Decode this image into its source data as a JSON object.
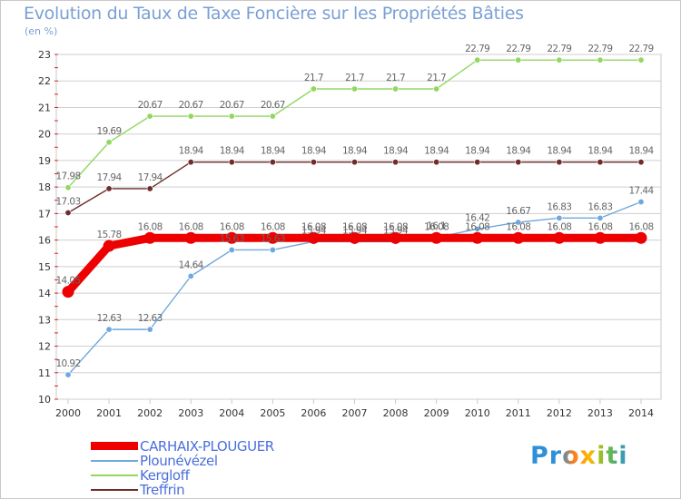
{
  "header": {
    "title": "Evolution du Taux de Taxe Foncière sur les Propriétés Bâties",
    "subtitle": "(en %)"
  },
  "brand": {
    "name": "Proxiti"
  },
  "colors": {
    "frame": "#c8c8c8",
    "grid": "#cfcfcf",
    "axis_tick": "#e02020",
    "axis_text": "#333333",
    "label_text": "#666666"
  },
  "chart_data": {
    "type": "line",
    "title": "Evolution du Taux de Taxe Foncière sur les Propriétés Bâties",
    "subtitle": "(en %)",
    "xlabel": "",
    "ylabel": "",
    "ylim": [
      10,
      23
    ],
    "yticks": [
      "10",
      "11",
      "12",
      "13",
      "14",
      "15",
      "16",
      "17",
      "18",
      "19",
      "20",
      "21",
      "22",
      "23"
    ],
    "x": [
      "2000",
      "2001",
      "2002",
      "2003",
      "2004",
      "2005",
      "2006",
      "2007",
      "2008",
      "2009",
      "2010",
      "2011",
      "2012",
      "2013",
      "2014"
    ],
    "grid": "horizontal",
    "legend_position": "bottom-left",
    "series": [
      {
        "name": "CARHAIX-PLOUGUER",
        "color": "#ee0000",
        "values": [
          14.05,
          15.78,
          16.08,
          16.08,
          16.08,
          16.08,
          16.08,
          16.08,
          16.08,
          16.08,
          16.08,
          16.08,
          16.08,
          16.08,
          16.08
        ],
        "labels": [
          "14.05",
          "15.78",
          "16.08",
          "16.08",
          "16.08",
          "16.08",
          "16.08",
          "16.08",
          "16.08",
          "16.08",
          "16.08",
          "16.08",
          "16.08",
          "16.08",
          "16.08"
        ]
      },
      {
        "name": "Plounévézel",
        "color": "#6fa8dc",
        "values": [
          10.92,
          12.63,
          12.63,
          14.64,
          15.63,
          15.63,
          15.94,
          15.94,
          15.94,
          16.1,
          16.42,
          16.67,
          16.83,
          16.83,
          17.44
        ],
        "labels": [
          "10.92",
          "12.63",
          "12.63",
          "14.64",
          "15.63",
          "15.63",
          "15.94",
          "15.94",
          "15.94",
          "16.1",
          "16.42",
          "16.67",
          "16.83",
          "16.83",
          "17.44"
        ]
      },
      {
        "name": "Kergloff",
        "color": "#90d860",
        "values": [
          17.98,
          19.69,
          20.67,
          20.67,
          20.67,
          20.67,
          21.7,
          21.7,
          21.7,
          21.7,
          22.79,
          22.79,
          22.79,
          22.79,
          22.79
        ],
        "labels": [
          "17.98",
          "19.69",
          "20.67",
          "20.67",
          "20.67",
          "20.67",
          "21.7",
          "21.7",
          "21.7",
          "21.7",
          "22.79",
          "22.79",
          "22.79",
          "22.79",
          "22.79"
        ]
      },
      {
        "name": "Treffrin",
        "color": "#6e2c2c",
        "values": [
          17.03,
          17.94,
          17.94,
          18.94,
          18.94,
          18.94,
          18.94,
          18.94,
          18.94,
          18.94,
          18.94,
          18.94,
          18.94,
          18.94,
          18.94
        ],
        "labels": [
          "17.03",
          "17.94",
          "17.94",
          "18.94",
          "18.94",
          "18.94",
          "18.94",
          "18.94",
          "18.94",
          "18.94",
          "18.94",
          "18.94",
          "18.94",
          "18.94",
          "18.94"
        ]
      }
    ]
  }
}
